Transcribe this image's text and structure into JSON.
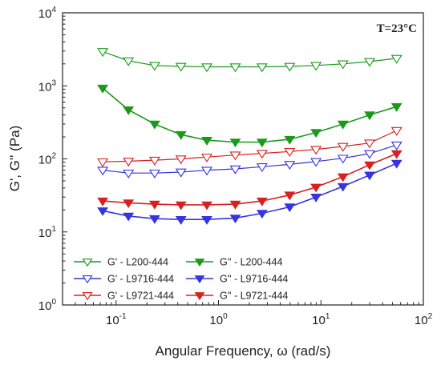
{
  "chart_data": {
    "type": "scatter",
    "xlabel": "Angular Frequency, ω (rad/s)",
    "ylabel": "G', G'' (Pa)",
    "xscale": "log",
    "yscale": "log",
    "xlim": [
      0.03,
      100
    ],
    "ylim": [
      1,
      10000
    ],
    "x_ticks": [
      {
        "base": "10",
        "exp": "-1",
        "value": 0.1
      },
      {
        "base": "10",
        "exp": "0",
        "value": 1
      },
      {
        "base": "10",
        "exp": "1",
        "value": 10
      },
      {
        "base": "10",
        "exp": "2",
        "value": 100
      }
    ],
    "y_ticks": [
      {
        "base": "10",
        "exp": "0",
        "value": 1
      },
      {
        "base": "10",
        "exp": "1",
        "value": 10
      },
      {
        "base": "10",
        "exp": "2",
        "value": 100
      },
      {
        "base": "10",
        "exp": "3",
        "value": 1000
      },
      {
        "base": "10",
        "exp": "4",
        "value": 10000
      }
    ],
    "annotation": "T=23°C",
    "legend_position": "bottom-left",
    "grid": false,
    "x": [
      0.074,
      0.132,
      0.238,
      0.43,
      0.77,
      1.46,
      2.66,
      4.95,
      8.95,
      16.4,
      29.9,
      54.9
    ],
    "series": [
      {
        "name": "G' - L200-444",
        "color": "#1a9a1a",
        "marker": "triangle-down-open",
        "values": [
          2950,
          2200,
          1900,
          1850,
          1820,
          1820,
          1820,
          1850,
          1900,
          2000,
          2150,
          2380
        ]
      },
      {
        "name": "G'' - L200-444",
        "color": "#1a9a1a",
        "marker": "triangle-down-filled",
        "values": [
          930,
          470,
          300,
          215,
          180,
          170,
          170,
          185,
          230,
          300,
          400,
          520
        ]
      },
      {
        "name": "G' - L9716-444",
        "color": "#3535e0",
        "marker": "triangle-down-open",
        "values": [
          70,
          64,
          64,
          66,
          70,
          73,
          78,
          84,
          92,
          102,
          118,
          155
        ]
      },
      {
        "name": "G'' - L9716-444",
        "color": "#3535e0",
        "marker": "triangle-down-filled",
        "values": [
          19.5,
          16.5,
          15.2,
          14.8,
          14.8,
          15.5,
          18,
          22,
          30,
          42,
          60,
          87
        ]
      },
      {
        "name": "G' - L9721-444",
        "color": "#d82020",
        "marker": "triangle-down-open",
        "values": [
          91,
          93,
          96,
          100,
          106,
          113,
          119,
          126,
          135,
          148,
          165,
          245
        ]
      },
      {
        "name": "G'' - L9721-444",
        "color": "#d82020",
        "marker": "triangle-down-filled",
        "values": [
          26.5,
          25,
          24,
          23.5,
          23.5,
          24,
          26.5,
          32,
          41,
          57,
          83,
          118
        ]
      }
    ]
  }
}
